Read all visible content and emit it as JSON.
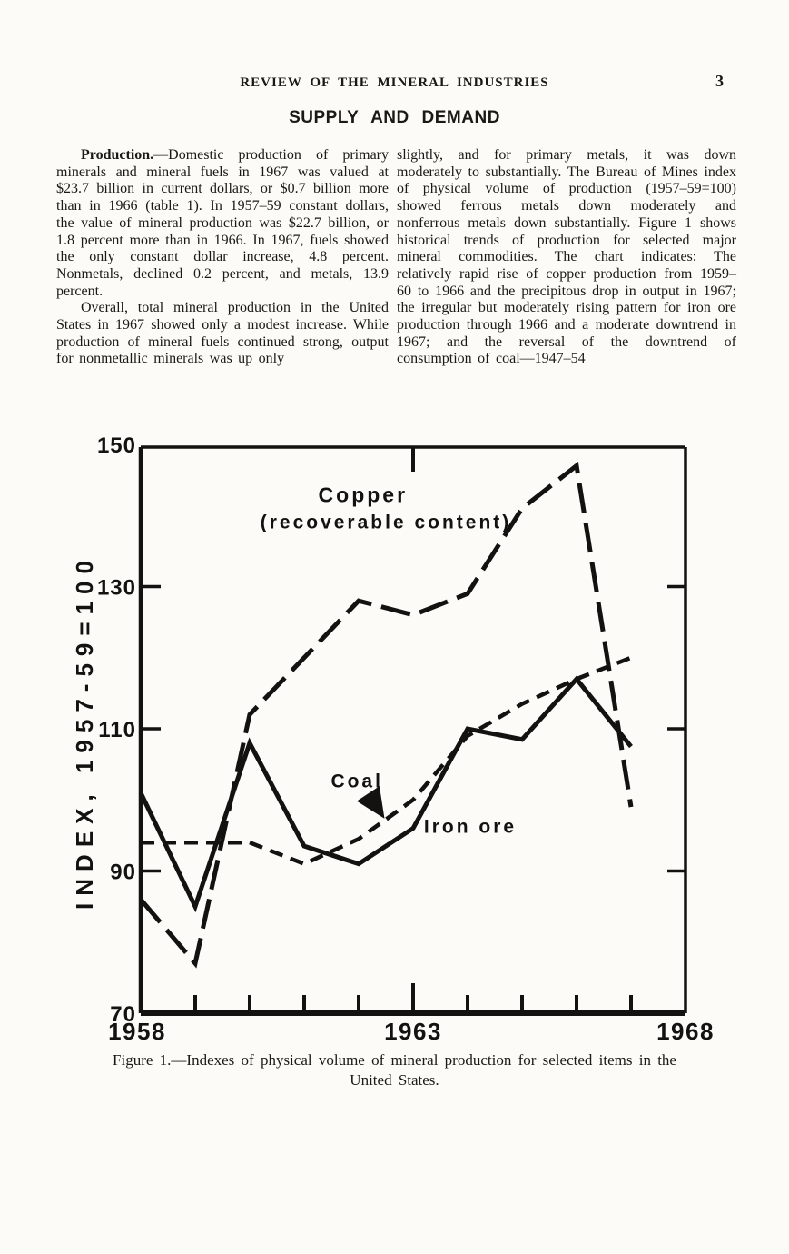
{
  "colors": {
    "paper": "#fcfbf7",
    "ink": "#1b1916",
    "chart_stroke": "#141210"
  },
  "page": {
    "running_title": "REVIEW OF THE MINERAL INDUSTRIES",
    "page_number": "3",
    "section_heading": "SUPPLY AND DEMAND"
  },
  "columns": {
    "left": {
      "para1_lead": "Production.",
      "para1_rest": "—Domestic production of primary minerals and mineral fuels in 1967 was valued at $23.7 billion in current dollars, or $0.7 billion more than in 1966 (table 1). In 1957–59 constant dollars, the value of mineral production was $22.7 billion, or 1.8 percent more than in 1966. In 1967, fuels showed the only constant dollar increase, 4.8 percent. Nonmetals, declined 0.2 percent, and metals, 13.9 percent.",
      "para2": "Overall, total mineral production in the United States in 1967 showed only a modest increase. While production of mineral fuels continued strong, output for nonmetallic minerals was up only"
    },
    "right": {
      "para1": "slightly, and for primary metals, it was down moderately to substantially. The Bureau of Mines index of physical volume of production (1957–59=100) showed ferrous metals down moderately and nonferrous metals down substantially. Figure 1 shows historical trends of production for selected major mineral commodities. The chart indicates: The relatively rapid rise of copper production from 1959–60 to 1966 and the precipitous drop in output in 1967; the irregular but moderately rising pattern for iron ore production through 1966 and a moderate downtrend in 1967; and the reversal of the downtrend of consumption of coal—1947–54"
    }
  },
  "figure": {
    "caption_line1": "Figure 1.—Indexes of physical volume of mineral production for selected items in the",
    "caption_line2": "United States."
  },
  "chart_data": {
    "type": "line",
    "title": "Figure 1.—Indexes of physical volume of mineral production for selected items in the United States.",
    "xlabel": "",
    "ylabel": "INDEX, 1957-59=100",
    "x": [
      1958,
      1959,
      1960,
      1961,
      1962,
      1963,
      1964,
      1965,
      1966,
      1967
    ],
    "xlim": [
      1958,
      1968
    ],
    "ylim": [
      70,
      150
    ],
    "yticks": [
      70,
      90,
      110,
      130,
      150
    ],
    "xticks_labeled": [
      1958,
      1963,
      1968
    ],
    "xticks_minor": [
      1959,
      1960,
      1961,
      1962,
      1963,
      1964,
      1965,
      1966,
      1967
    ],
    "grid": false,
    "legend_position": "inline-annotations",
    "series": [
      {
        "key": "copper",
        "name": "Copper (recoverable content)",
        "line_style": "long-dash",
        "values": [
          86,
          77,
          112,
          120,
          128,
          126,
          129,
          141,
          147,
          99
        ]
      },
      {
        "key": "iron-ore",
        "name": "Iron ore",
        "line_style": "solid",
        "values": [
          101,
          85,
          108,
          93.5,
          91,
          96,
          110,
          108.5,
          117,
          107.5
        ]
      },
      {
        "key": "coal",
        "name": "Coal",
        "line_style": "dash",
        "values": [
          94,
          94,
          94,
          91,
          94.5,
          100,
          109,
          113.5,
          117,
          120
        ]
      }
    ],
    "annotations": [
      {
        "text": "Copper",
        "x": 1962.08,
        "y": 142.9,
        "series": "copper"
      },
      {
        "text": "(recoverable content)",
        "x": 1962.5,
        "y": 139.2,
        "series": "copper"
      },
      {
        "text": "Coal",
        "x": 1961.97,
        "y": 102.8,
        "series": "coal"
      },
      {
        "text": "Iron ore",
        "x": 1964.05,
        "y": 96.4,
        "series": "iron-ore"
      }
    ],
    "coal_arrow": {
      "from_x": 1962.18,
      "from_y": 100.8,
      "to_x": 1962.42,
      "to_y": 98.0
    }
  }
}
